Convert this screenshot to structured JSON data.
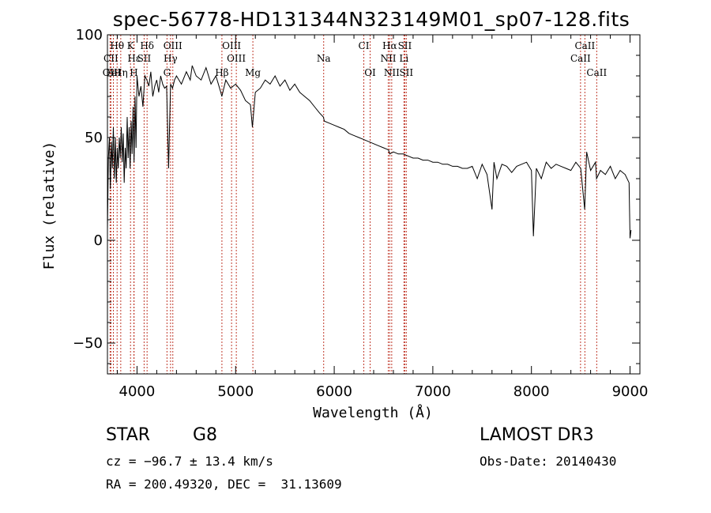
{
  "chart_data": {
    "type": "line",
    "title": "spec-56778-HD131344N323149M01_sp07-128.fits",
    "xlabel": "Wavelength (Å)",
    "ylabel": "Flux (relative)",
    "xlim": [
      3700,
      9100
    ],
    "ylim": [
      -65,
      100
    ],
    "xticks": [
      4000,
      5000,
      6000,
      7000,
      8000,
      9000
    ],
    "yticks": [
      -50,
      0,
      50,
      100
    ],
    "grid": false,
    "series": [
      {
        "name": "spectrum",
        "x": [
          3700,
          3710,
          3720,
          3730,
          3740,
          3750,
          3760,
          3770,
          3780,
          3790,
          3800,
          3810,
          3820,
          3830,
          3840,
          3850,
          3860,
          3870,
          3880,
          3890,
          3900,
          3910,
          3920,
          3930,
          3940,
          3950,
          3960,
          3970,
          3980,
          3990,
          4000,
          4020,
          4040,
          4060,
          4080,
          4100,
          4120,
          4140,
          4160,
          4180,
          4200,
          4220,
          4240,
          4260,
          4280,
          4300,
          4320,
          4340,
          4360,
          4380,
          4400,
          4450,
          4500,
          4540,
          4560,
          4600,
          4650,
          4700,
          4750,
          4800,
          4850,
          4860,
          4900,
          4950,
          5000,
          5050,
          5100,
          5150,
          5170,
          5200,
          5250,
          5300,
          5350,
          5400,
          5450,
          5500,
          5550,
          5600,
          5650,
          5700,
          5750,
          5800,
          5850,
          5890,
          5900,
          5950,
          6000,
          6050,
          6100,
          6150,
          6200,
          6250,
          6300,
          6350,
          6400,
          6450,
          6500,
          6550,
          6563,
          6600,
          6650,
          6700,
          6750,
          6800,
          6850,
          6900,
          6950,
          7000,
          7050,
          7100,
          7150,
          7200,
          7250,
          7300,
          7350,
          7400,
          7450,
          7500,
          7550,
          7600,
          7620,
          7650,
          7700,
          7750,
          7800,
          7850,
          7900,
          7950,
          8000,
          8020,
          8050,
          8100,
          8150,
          8200,
          8250,
          8300,
          8350,
          8400,
          8450,
          8500,
          8540,
          8560,
          8600,
          8650,
          8660,
          8700,
          8750,
          8800,
          8850,
          8900,
          8950,
          8990,
          9000,
          9010
        ],
        "y": [
          5,
          40,
          50,
          25,
          48,
          35,
          55,
          30,
          50,
          28,
          45,
          35,
          50,
          40,
          55,
          38,
          52,
          28,
          45,
          35,
          60,
          40,
          55,
          35,
          58,
          42,
          65,
          38,
          70,
          45,
          80,
          70,
          75,
          65,
          80,
          78,
          75,
          82,
          70,
          75,
          78,
          72,
          80,
          76,
          74,
          75,
          35,
          76,
          74,
          78,
          80,
          76,
          82,
          78,
          85,
          80,
          78,
          84,
          76,
          80,
          72,
          70,
          78,
          74,
          76,
          73,
          68,
          66,
          55,
          72,
          74,
          78,
          76,
          80,
          75,
          78,
          73,
          76,
          72,
          70,
          68,
          65,
          62,
          60,
          58,
          57,
          56,
          55,
          54,
          52,
          51,
          50,
          49,
          48,
          47,
          46,
          45,
          44,
          42,
          43,
          42,
          42,
          41,
          40,
          40,
          39,
          39,
          38,
          38,
          37,
          37,
          36,
          36,
          35,
          35,
          36,
          30,
          37,
          32,
          15,
          38,
          30,
          37,
          36,
          33,
          36,
          37,
          38,
          34,
          2,
          35,
          30,
          38,
          35,
          37,
          36,
          35,
          34,
          38,
          35,
          15,
          43,
          34,
          38,
          30,
          34,
          32,
          36,
          30,
          34,
          32,
          28,
          1,
          5
        ]
      }
    ],
    "spectral_lines": [
      {
        "label": "OII",
        "wave": 3727,
        "row": 2
      },
      {
        "label": "Hθ",
        "wave": 3798,
        "row": 0
      },
      {
        "label": "CII",
        "wave": 3735,
        "row": 1
      },
      {
        "label": "FeI",
        "wave": 3760,
        "row": 2
      },
      {
        "label": "K",
        "wave": 3934,
        "row": 0
      },
      {
        "label": "Hε",
        "wave": 3970,
        "row": 1
      },
      {
        "label": "Hη",
        "wave": 3835,
        "row": 2
      },
      {
        "label": "H",
        "wave": 3968,
        "row": 2
      },
      {
        "label": "Hδ",
        "wave": 4102,
        "row": 0
      },
      {
        "label": "SII",
        "wave": 4072,
        "row": 1
      },
      {
        "label": "OIII",
        "wave": 4363,
        "row": 0
      },
      {
        "label": "Hγ",
        "wave": 4340,
        "row": 1
      },
      {
        "label": "G",
        "wave": 4304,
        "row": 2
      },
      {
        "label": "Hβ",
        "wave": 4861,
        "row": 2
      },
      {
        "label": "OIII",
        "wave": 4959,
        "row": 0
      },
      {
        "label": "OIII",
        "wave": 5007,
        "row": 1
      },
      {
        "label": "Mg",
        "wave": 5175,
        "row": 2
      },
      {
        "label": "Na",
        "wave": 5893,
        "row": 1
      },
      {
        "label": "CI",
        "wave": 6300,
        "row": 0
      },
      {
        "label": "OI",
        "wave": 6364,
        "row": 2
      },
      {
        "label": "Hα",
        "wave": 6563,
        "row": 0
      },
      {
        "label": "NII",
        "wave": 6548,
        "row": 1
      },
      {
        "label": "NII",
        "wave": 6583,
        "row": 2
      },
      {
        "label": "SII",
        "wave": 6716,
        "row": 0
      },
      {
        "label": "Li",
        "wave": 6707,
        "row": 1
      },
      {
        "label": "SII",
        "wave": 6731,
        "row": 2
      },
      {
        "label": "CaII",
        "wave": 8542,
        "row": 0
      },
      {
        "label": "CaII",
        "wave": 8498,
        "row": 1
      },
      {
        "label": "CaII",
        "wave": 8662,
        "row": 2
      }
    ]
  },
  "info": {
    "object_type": "STAR",
    "subclass": "G8",
    "survey": "LAMOST DR3",
    "redshift": "cz = −96.7 ± 13.4 km/s",
    "obs_date": "Obs-Date: 20140430",
    "coords": "RA = 200.49320, DEC =  31.13609"
  },
  "colors": {
    "line_marker": "#c0392b",
    "spectrum": "#000000"
  }
}
